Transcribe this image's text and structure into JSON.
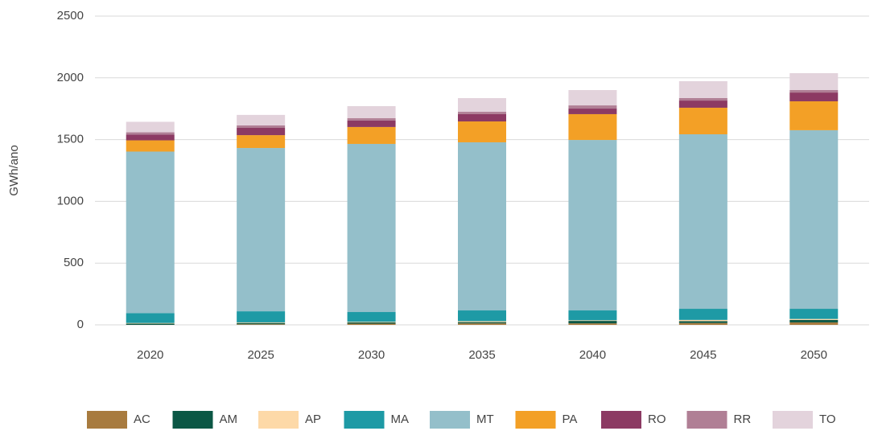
{
  "chart_data": {
    "type": "stacked_bar",
    "y_axis_label": "GWh/ano",
    "categories": [
      "2020",
      "2025",
      "2030",
      "2035",
      "2040",
      "2045",
      "2050"
    ],
    "ylim": [
      0,
      2500
    ],
    "yticks": [
      0,
      500,
      1000,
      1500,
      2000,
      2500
    ],
    "grid": true,
    "legend": "bottom",
    "series": [
      {
        "name": "AC",
        "color": "#a87b3f",
        "values": [
          0,
          5,
          10,
          12,
          12,
          15,
          20
        ]
      },
      {
        "name": "AM",
        "color": "#0b5745",
        "values": [
          10,
          10,
          10,
          10,
          20,
          15,
          20
        ]
      },
      {
        "name": "AP",
        "color": "#fdd9a8",
        "values": [
          5,
          5,
          5,
          8,
          5,
          10,
          8
        ]
      },
      {
        "name": "MA",
        "color": "#1e9aa5",
        "values": [
          80,
          90,
          79,
          87,
          80,
          90,
          82
        ]
      },
      {
        "name": "MT",
        "color": "#94bfca",
        "values": [
          1308,
          1322,
          1361,
          1361,
          1380,
          1413,
          1446
        ]
      },
      {
        "name": "PA",
        "color": "#f3a026",
        "values": [
          91,
          104,
          137,
          169,
          209,
          215,
          234
        ]
      },
      {
        "name": "RO",
        "color": "#8c3a63",
        "values": [
          46,
          59,
          52,
          59,
          45,
          58,
          71
        ]
      },
      {
        "name": "RR",
        "color": "#b07f95",
        "values": [
          19,
          20,
          19,
          19,
          26,
          20,
          20
        ]
      },
      {
        "name": "TO",
        "color": "#e3d3dc",
        "values": [
          85,
          85,
          98,
          111,
          124,
          137,
          137
        ]
      }
    ]
  }
}
